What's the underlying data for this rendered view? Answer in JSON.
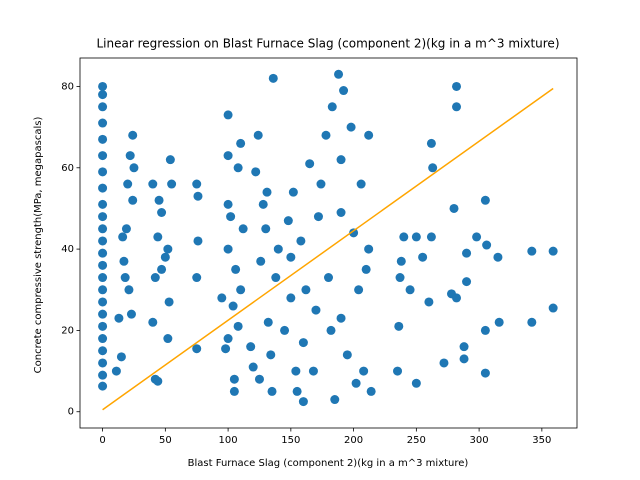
{
  "chart_data": {
    "type": "scatter",
    "title": "Linear regression on Blast Furnace Slag (component 2)(kg in a m^3 mixture)",
    "x_label": "Blast Furnace Slag (component 2)(kg in a m^3 mixture)",
    "y_label": "Concrete compressive strength(MPa, megapascals)",
    "xlim": [
      -18,
      378
    ],
    "ylim": [
      -4,
      87
    ],
    "xticks": [
      0,
      50,
      100,
      150,
      200,
      250,
      300,
      350
    ],
    "yticks": [
      0,
      20,
      40,
      60,
      80
    ],
    "series": [
      {
        "color": "#1f77b4",
        "x": [
          0,
          0,
          0,
          0,
          0,
          0,
          0,
          0,
          0,
          0,
          0,
          0,
          0,
          0,
          0,
          0,
          0,
          0,
          0,
          0,
          0,
          0,
          0,
          0,
          11,
          13,
          15,
          17,
          19,
          20,
          22,
          24,
          21,
          23,
          18,
          24,
          25,
          16,
          40,
          42,
          44,
          42,
          44,
          45,
          47,
          50,
          52,
          53,
          54,
          55,
          40,
          52,
          47,
          75,
          75,
          76,
          76,
          75,
          95,
          98,
          100,
          100,
          100,
          100,
          100,
          102,
          104,
          105,
          105,
          106,
          108,
          110,
          112,
          110,
          108,
          118,
          120,
          122,
          124,
          126,
          128,
          130,
          132,
          134,
          135,
          136,
          138,
          140,
          125,
          131,
          145,
          148,
          150,
          152,
          154,
          155,
          158,
          160,
          162,
          165,
          168,
          170,
          172,
          174,
          160,
          150,
          178,
          180,
          182,
          183,
          185,
          188,
          190,
          190,
          192,
          195,
          198,
          200,
          202,
          204,
          206,
          208,
          210,
          212,
          214,
          212,
          190,
          235,
          236,
          237,
          238,
          240,
          245,
          250,
          250,
          255,
          260,
          262,
          263,
          262,
          272,
          278,
          280,
          282,
          282,
          282,
          288,
          288,
          290,
          290,
          298,
          305,
          305,
          305,
          306,
          315,
          316,
          342,
          342,
          359,
          359
        ],
        "values": [
          6.3,
          9,
          12,
          15,
          18,
          21,
          24,
          27,
          30,
          33,
          36,
          39,
          42,
          45,
          48,
          51,
          55,
          59,
          63,
          67,
          71,
          75,
          78,
          80,
          10,
          23,
          13.5,
          37,
          45,
          56,
          63,
          68,
          30,
          24,
          33,
          52,
          60,
          43,
          22,
          8,
          7.5,
          33,
          43,
          52,
          49,
          38,
          40,
          27,
          62,
          56,
          56,
          18,
          35,
          15.5,
          33,
          42,
          53,
          56,
          28,
          15.5,
          18,
          40,
          51,
          63,
          73,
          48,
          26,
          8,
          5,
          35,
          60,
          66,
          45,
          30,
          21,
          16,
          11,
          59,
          68,
          37,
          51,
          45,
          22,
          14,
          5,
          82,
          33,
          40,
          8,
          54,
          20,
          47,
          28,
          54,
          10,
          5,
          42,
          17,
          30,
          61,
          10,
          25,
          48,
          56,
          2.5,
          38,
          68,
          33,
          20,
          75,
          3,
          83,
          49,
          23,
          79,
          14,
          70,
          44,
          7,
          30,
          56,
          10,
          35,
          68,
          5,
          40,
          62,
          10,
          21,
          33,
          37,
          43,
          30,
          7,
          43,
          38,
          27,
          66,
          60,
          43,
          12,
          29,
          50,
          80,
          75,
          28,
          16,
          13,
          39,
          32,
          43,
          52,
          20,
          9.5,
          41,
          38,
          22,
          39.5,
          22,
          39.5,
          25.5
        ]
      },
      {
        "type": "line",
        "color": "#ffa500",
        "x": [
          0,
          359
        ],
        "values": [
          0.5,
          79.5
        ]
      }
    ]
  }
}
